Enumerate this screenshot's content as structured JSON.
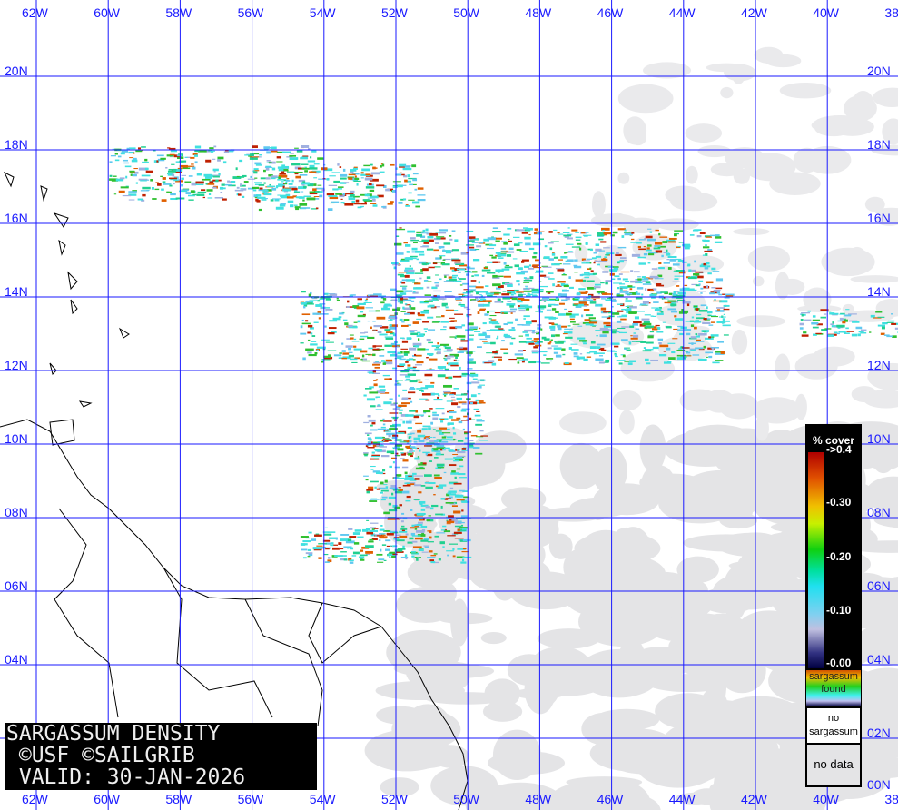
{
  "map": {
    "lon_labels": [
      "62W",
      "60W",
      "58W",
      "56W",
      "54W",
      "52W",
      "50W",
      "48W",
      "46W",
      "44W",
      "42W",
      "40W",
      "38"
    ],
    "lat_labels": [
      "20N",
      "18N",
      "16N",
      "14N",
      "12N",
      "10N",
      "08N",
      "06N",
      "04N",
      "02N",
      "00N"
    ],
    "colors": {
      "grid": "#1a1aff",
      "no_data": "#e4e4e6",
      "land_outline": "#000000"
    }
  },
  "title": {
    "line1": "SARGASSUM DENSITY",
    "line2": " ©USF ©SAILGRIB",
    "line3": " VALID: 30-JAN-2026"
  },
  "legend": {
    "header": "% cover",
    "ticks": [
      "->0.4",
      "-0.30",
      "-0.20",
      "-0.10",
      "-0.00"
    ],
    "found_line1": "sargassum",
    "found_line2": "found",
    "no_sargassum_line1": "no",
    "no_sargassum_line2": "sargassum",
    "no_data": "no data"
  }
}
